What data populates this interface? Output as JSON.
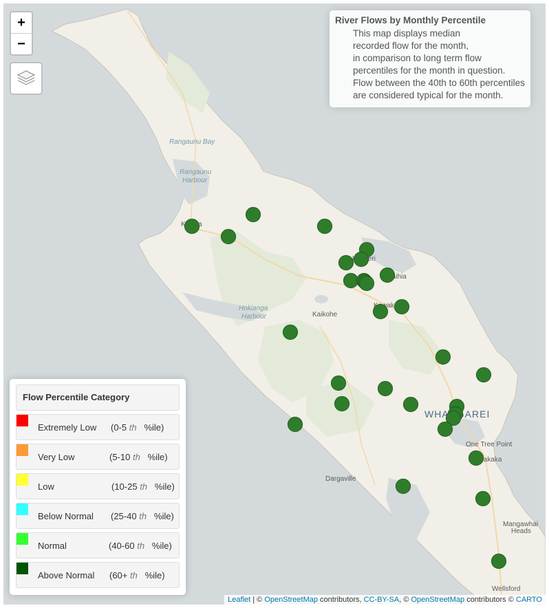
{
  "info": {
    "title": "River Flows by Monthly Percentile",
    "lines": [
      "This map displays median",
      "recorded flow for the month,",
      "in comparison to long term flow",
      "percentiles for the month in question.",
      "Flow between the 40th to 60th percentiles",
      "are considered typical for the month."
    ]
  },
  "controls": {
    "zoom_in": "+",
    "zoom_out": "−"
  },
  "legend": {
    "title": "Flow Percentile Category",
    "items": [
      {
        "label": "Extremely Low",
        "range_open": "(0-5",
        "suffix": "th",
        "unit": "%ile)",
        "color": "#ff0000"
      },
      {
        "label": "Very Low",
        "range_open": "(5-10",
        "suffix": "th",
        "unit": "%ile)",
        "color": "#ff9933"
      },
      {
        "label": "Low",
        "range_open": "(10-25",
        "suffix": "th",
        "unit": "%ile)",
        "color": "#ffff33"
      },
      {
        "label": "Below Normal",
        "range_open": "(25-40",
        "suffix": "th",
        "unit": "%ile)",
        "color": "#33ffff"
      },
      {
        "label": "Normal",
        "range_open": "(40-60",
        "suffix": "th",
        "unit": "%ile)",
        "color": "#33ff33"
      },
      {
        "label": "Above Normal",
        "range_open": "(60+",
        "suffix": "th",
        "unit": "%ile)",
        "color": "#005500"
      }
    ]
  },
  "map": {
    "marker_color": "#2f7d2b",
    "places": {
      "rangaunu_bay": "Rangaunu Bay",
      "rangaunu_harbour_1": "Rangaunu",
      "rangaunu_harbour_2": "Harbour",
      "kaitaia": "Kaitaia",
      "kerikeri": "Kerikeri",
      "paihia": "Paihia",
      "kawakawa": "Kawakawa",
      "hokianga_1": "Hokianga",
      "hokianga_2": "Harbour",
      "kaikohe": "Kaikohe",
      "whangarei": "WHANGAREI",
      "one_tree_point": "One Tree Point",
      "ruakaka": "Ruakaka",
      "dargaville": "Dargaville",
      "mangawhai_1": "Mangawhai",
      "mangawhai_2": "Heads",
      "wellsford": "Wellsford"
    },
    "site_count": 30
  },
  "attribution": {
    "leaflet": "Leaflet",
    "sep1": " | © ",
    "osm": "OpenStreetMap",
    "contrib1": " contributors, ",
    "ccbysa": "CC-BY-SA",
    "sep2": ", © ",
    "osm2": "OpenStreetMap",
    "contrib2": " contributors © ",
    "carto": "CARTO"
  }
}
